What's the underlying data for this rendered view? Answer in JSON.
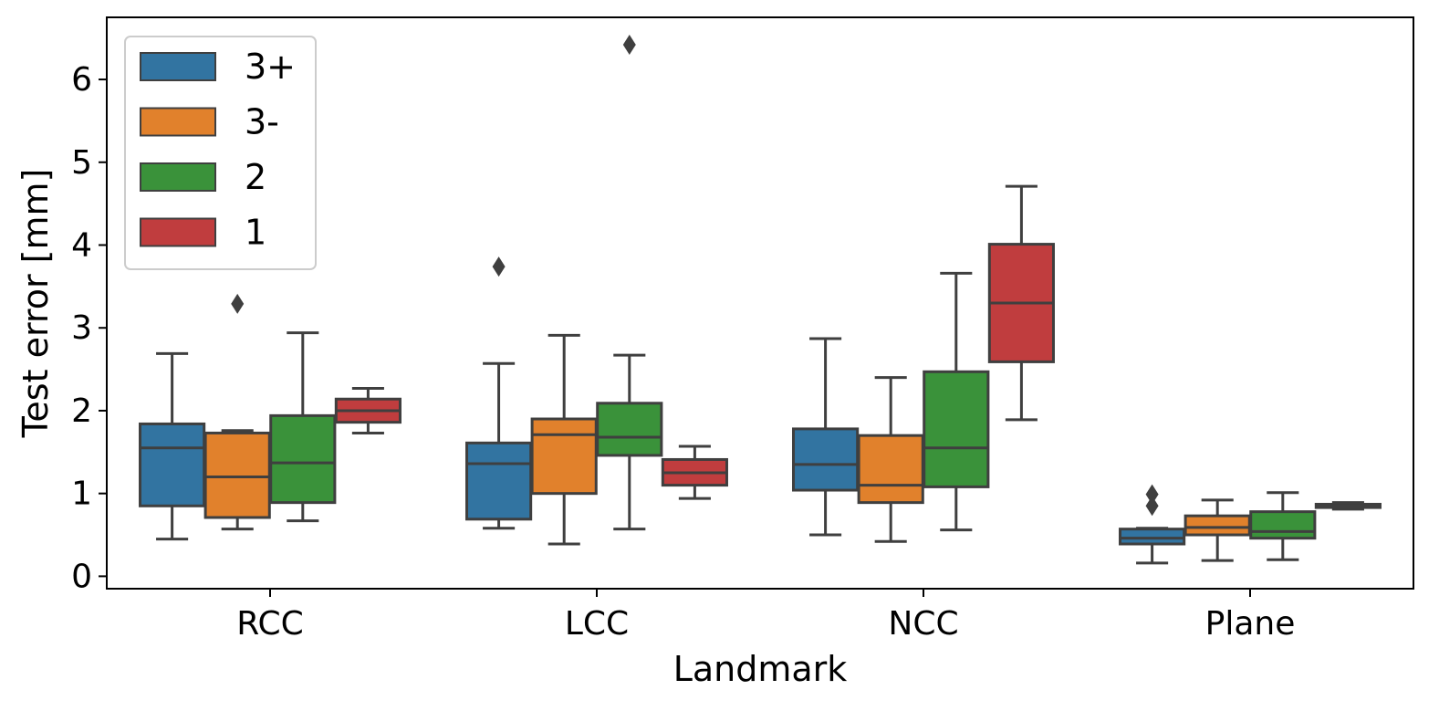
{
  "chart_data": {
    "type": "box",
    "xlabel": "Landmark",
    "ylabel": "Test error [mm]",
    "ylim": [
      -0.15,
      6.75
    ],
    "yticks": [
      "0",
      "1",
      "2",
      "3",
      "4",
      "5",
      "6"
    ],
    "categories": [
      "RCC",
      "LCC",
      "NCC",
      "Plane"
    ],
    "legend_position": "top-left",
    "series": [
      {
        "name": "3+",
        "color": "#3274a1",
        "boxes": [
          {
            "whisker_low": 0.45,
            "q1": 0.85,
            "median": 1.55,
            "q3": 1.84,
            "whisker_high": 2.69,
            "outliers": []
          },
          {
            "whisker_low": 0.58,
            "q1": 0.69,
            "median": 1.36,
            "q3": 1.61,
            "whisker_high": 2.57,
            "outliers": [
              3.74
            ]
          },
          {
            "whisker_low": 0.5,
            "q1": 1.04,
            "median": 1.35,
            "q3": 1.78,
            "whisker_high": 2.87,
            "outliers": []
          },
          {
            "whisker_low": 0.16,
            "q1": 0.39,
            "median": 0.46,
            "q3": 0.57,
            "whisker_high": 0.58,
            "outliers": [
              0.85,
              0.99
            ]
          }
        ]
      },
      {
        "name": "3-",
        "color": "#e1812c",
        "boxes": [
          {
            "whisker_low": 0.57,
            "q1": 0.71,
            "median": 1.2,
            "q3": 1.73,
            "whisker_high": 1.76,
            "outliers": [
              3.29
            ]
          },
          {
            "whisker_low": 0.39,
            "q1": 1.0,
            "median": 1.71,
            "q3": 1.9,
            "whisker_high": 2.91,
            "outliers": []
          },
          {
            "whisker_low": 0.42,
            "q1": 0.89,
            "median": 1.1,
            "q3": 1.7,
            "whisker_high": 2.4,
            "outliers": []
          },
          {
            "whisker_low": 0.19,
            "q1": 0.5,
            "median": 0.59,
            "q3": 0.73,
            "whisker_high": 0.92,
            "outliers": []
          }
        ]
      },
      {
        "name": "2",
        "color": "#3a923a",
        "boxes": [
          {
            "whisker_low": 0.67,
            "q1": 0.89,
            "median": 1.37,
            "q3": 1.94,
            "whisker_high": 2.94,
            "outliers": []
          },
          {
            "whisker_low": 0.57,
            "q1": 1.46,
            "median": 1.68,
            "q3": 2.09,
            "whisker_high": 2.67,
            "outliers": [
              6.42
            ]
          },
          {
            "whisker_low": 0.56,
            "q1": 1.08,
            "median": 1.55,
            "q3": 2.47,
            "whisker_high": 3.66,
            "outliers": []
          },
          {
            "whisker_low": 0.2,
            "q1": 0.46,
            "median": 0.54,
            "q3": 0.78,
            "whisker_high": 1.01,
            "outliers": []
          }
        ]
      },
      {
        "name": "1",
        "color": "#c03d3e",
        "boxes": [
          {
            "whisker_low": 1.73,
            "q1": 1.86,
            "median": 2.0,
            "q3": 2.14,
            "whisker_high": 2.27,
            "outliers": []
          },
          {
            "whisker_low": 0.94,
            "q1": 1.1,
            "median": 1.25,
            "q3": 1.41,
            "whisker_high": 1.57,
            "outliers": []
          },
          {
            "whisker_low": 1.89,
            "q1": 2.59,
            "median": 3.3,
            "q3": 4.01,
            "whisker_high": 4.71,
            "outliers": []
          },
          {
            "whisker_low": 0.81,
            "q1": 0.83,
            "median": 0.85,
            "q3": 0.87,
            "whisker_high": 0.89,
            "outliers": []
          }
        ]
      }
    ]
  }
}
